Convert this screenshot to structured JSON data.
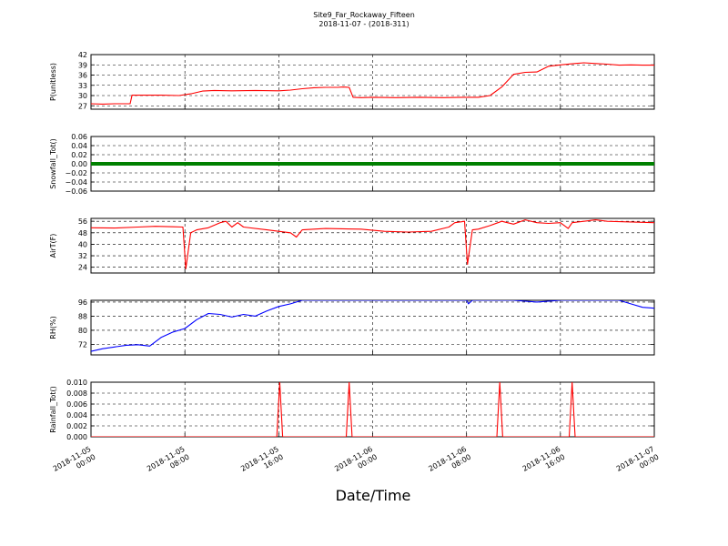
{
  "figure": {
    "title": "Site9_Far_Rockaway_Fifteen",
    "subtitle": "2018-11-07 - (2018-311)",
    "xlabel": "Date/Time"
  },
  "chart_data": {
    "type": "line",
    "grid": true,
    "x_range": [
      "2018-11-05 00:00",
      "2018-11-07 00:00"
    ],
    "x_ticks": [
      {
        "at": "2018-11-05 00:00",
        "l1": "2018-11-05",
        "l2": "00:00"
      },
      {
        "at": "2018-11-05 08:00",
        "l1": "2018-11-05",
        "l2": "08:00"
      },
      {
        "at": "2018-11-05 16:00",
        "l1": "2018-11-05",
        "l2": "16:00"
      },
      {
        "at": "2018-11-06 00:00",
        "l1": "2018-11-06",
        "l2": "00:00"
      },
      {
        "at": "2018-11-06 08:00",
        "l1": "2018-11-06",
        "l2": "08:00"
      },
      {
        "at": "2018-11-06 16:00",
        "l1": "2018-11-06",
        "l2": "16:00"
      },
      {
        "at": "2018-11-07 00:00",
        "l1": "2018-11-07",
        "l2": "00:00"
      }
    ],
    "panels": [
      {
        "ylabel": "P(unitless)",
        "ylim": [
          26,
          42
        ],
        "yticks": [
          "27",
          "30",
          "33",
          "36",
          "39",
          "42"
        ],
        "color": "#ff0000",
        "series": [
          [
            "2018-11-05 00:00",
            27.6
          ],
          [
            "2018-11-05 01:00",
            27.5
          ],
          [
            "2018-11-05 02:00",
            27.6
          ],
          [
            "2018-11-05 03:20",
            27.6
          ],
          [
            "2018-11-05 03:30",
            30.1
          ],
          [
            "2018-11-05 04:30",
            30.1
          ],
          [
            "2018-11-05 06:00",
            30.1
          ],
          [
            "2018-11-05 07:30",
            30.0
          ],
          [
            "2018-11-05 08:30",
            30.5
          ],
          [
            "2018-11-05 09:30",
            31.3
          ],
          [
            "2018-11-05 10:30",
            31.5
          ],
          [
            "2018-11-05 12:00",
            31.4
          ],
          [
            "2018-11-05 14:00",
            31.5
          ],
          [
            "2018-11-05 16:00",
            31.4
          ],
          [
            "2018-11-05 17:00",
            31.6
          ],
          [
            "2018-11-05 18:00",
            32.0
          ],
          [
            "2018-11-05 19:00",
            32.3
          ],
          [
            "2018-11-05 20:00",
            32.4
          ],
          [
            "2018-11-05 21:00",
            32.4
          ],
          [
            "2018-11-05 21:30",
            32.5
          ],
          [
            "2018-11-05 22:00",
            32.4
          ],
          [
            "2018-11-05 22:20",
            29.5
          ],
          [
            "2018-11-05 23:00",
            29.4
          ],
          [
            "2018-11-06 00:00",
            29.5
          ],
          [
            "2018-11-06 02:00",
            29.4
          ],
          [
            "2018-11-06 04:00",
            29.5
          ],
          [
            "2018-11-06 06:00",
            29.4
          ],
          [
            "2018-11-06 08:00",
            29.5
          ],
          [
            "2018-11-06 09:00",
            29.5
          ],
          [
            "2018-11-06 10:00",
            30.0
          ],
          [
            "2018-11-06 11:00",
            32.5
          ],
          [
            "2018-11-06 12:00",
            36.2
          ],
          [
            "2018-11-06 13:00",
            36.8
          ],
          [
            "2018-11-06 14:00",
            36.9
          ],
          [
            "2018-11-06 15:00",
            38.6
          ],
          [
            "2018-11-06 16:00",
            39.0
          ],
          [
            "2018-11-06 17:00",
            39.3
          ],
          [
            "2018-11-06 18:00",
            39.6
          ],
          [
            "2018-11-06 19:00",
            39.4
          ],
          [
            "2018-11-06 20:00",
            39.2
          ],
          [
            "2018-11-06 21:00",
            38.9
          ],
          [
            "2018-11-06 22:00",
            39.0
          ],
          [
            "2018-11-06 23:00",
            38.9
          ],
          [
            "2018-11-07 00:00",
            38.9
          ]
        ]
      },
      {
        "ylabel": "Snowfall_Tot()",
        "ylim": [
          -0.06,
          0.06
        ],
        "yticks": [
          "−0.06",
          "−0.04",
          "−0.02",
          "0.00",
          "0.02",
          "0.04",
          "0.06"
        ],
        "color": "#008000",
        "series": [
          [
            "2018-11-05 00:00",
            0.0
          ],
          [
            "2018-11-07 00:00",
            0.0
          ]
        ]
      },
      {
        "ylabel": "AirT(F)",
        "ylim": [
          20,
          58
        ],
        "yticks": [
          "24",
          "32",
          "40",
          "48",
          "56"
        ],
        "color": "#ff0000",
        "series": [
          [
            "2018-11-05 00:00",
            51.5
          ],
          [
            "2018-11-05 02:00",
            51.3
          ],
          [
            "2018-11-05 04:00",
            52.0
          ],
          [
            "2018-11-05 05:30",
            52.5
          ],
          [
            "2018-11-05 07:00",
            52.2
          ],
          [
            "2018-11-05 07:50",
            52.0
          ],
          [
            "2018-11-05 08:05",
            23.0
          ],
          [
            "2018-11-05 08:30",
            48.0
          ],
          [
            "2018-11-05 09:00",
            50.0
          ],
          [
            "2018-11-05 10:00",
            51.5
          ],
          [
            "2018-11-05 11:00",
            55.0
          ],
          [
            "2018-11-05 11:30",
            56.0
          ],
          [
            "2018-11-05 12:00",
            52.0
          ],
          [
            "2018-11-05 12:30",
            55.0
          ],
          [
            "2018-11-05 13:00",
            52.0
          ],
          [
            "2018-11-05 15:00",
            50.0
          ],
          [
            "2018-11-05 17:00",
            48.0
          ],
          [
            "2018-11-05 17:30",
            45.0
          ],
          [
            "2018-11-05 18:00",
            50.0
          ],
          [
            "2018-11-05 20:00",
            51.0
          ],
          [
            "2018-11-05 23:00",
            50.5
          ],
          [
            "2018-11-06 01:00",
            49.0
          ],
          [
            "2018-11-06 03:00",
            48.5
          ],
          [
            "2018-11-06 05:00",
            49.0
          ],
          [
            "2018-11-06 06:30",
            52.0
          ],
          [
            "2018-11-06 07:00",
            55.0
          ],
          [
            "2018-11-06 07:50",
            56.0
          ],
          [
            "2018-11-06 08:05",
            26.0
          ],
          [
            "2018-11-06 08:30",
            50.0
          ],
          [
            "2018-11-06 09:00",
            50.5
          ],
          [
            "2018-11-06 10:00",
            53.0
          ],
          [
            "2018-11-06 11:00",
            56.0
          ],
          [
            "2018-11-06 12:00",
            54.0
          ],
          [
            "2018-11-06 13:00",
            57.0
          ],
          [
            "2018-11-06 14:00",
            55.0
          ],
          [
            "2018-11-06 15:00",
            54.5
          ],
          [
            "2018-11-06 16:00",
            55.0
          ],
          [
            "2018-11-06 16:40",
            51.0
          ],
          [
            "2018-11-06 17:00",
            55.0
          ],
          [
            "2018-11-06 18:00",
            56.0
          ],
          [
            "2018-11-06 19:00",
            57.0
          ],
          [
            "2018-11-06 20:00",
            56.0
          ],
          [
            "2018-11-06 22:00",
            55.5
          ],
          [
            "2018-11-07 00:00",
            55.0
          ]
        ]
      },
      {
        "ylabel": "RH(%)",
        "ylim": [
          66,
          97
        ],
        "yticks": [
          "72",
          "80",
          "88",
          "96"
        ],
        "color": "#0000ff",
        "series": [
          [
            "2018-11-05 00:00",
            68.0
          ],
          [
            "2018-11-05 01:00",
            69.5
          ],
          [
            "2018-11-05 02:00",
            70.5
          ],
          [
            "2018-11-05 03:00",
            71.5
          ],
          [
            "2018-11-05 04:00",
            71.8
          ],
          [
            "2018-11-05 05:00",
            71.0
          ],
          [
            "2018-11-05 06:00",
            76.0
          ],
          [
            "2018-11-05 07:00",
            79.0
          ],
          [
            "2018-11-05 08:00",
            81.0
          ],
          [
            "2018-11-05 09:00",
            86.0
          ],
          [
            "2018-11-05 10:00",
            89.5
          ],
          [
            "2018-11-05 11:00",
            89.0
          ],
          [
            "2018-11-05 12:00",
            87.5
          ],
          [
            "2018-11-05 13:00",
            89.0
          ],
          [
            "2018-11-05 14:00",
            88.0
          ],
          [
            "2018-11-05 15:00",
            91.0
          ],
          [
            "2018-11-05 16:00",
            93.5
          ],
          [
            "2018-11-05 17:00",
            95.0
          ],
          [
            "2018-11-05 18:00",
            97.0
          ],
          [
            "2018-11-05 20:00",
            97.0
          ],
          [
            "2018-11-06 08:00",
            97.0
          ],
          [
            "2018-11-06 08:10",
            95.0
          ],
          [
            "2018-11-06 08:30",
            97.0
          ],
          [
            "2018-11-06 12:00",
            97.0
          ],
          [
            "2018-11-06 14:00",
            96.0
          ],
          [
            "2018-11-06 16:00",
            97.0
          ],
          [
            "2018-11-06 21:00",
            97.0
          ],
          [
            "2018-11-06 22:00",
            95.0
          ],
          [
            "2018-11-06 23:00",
            93.0
          ],
          [
            "2018-11-07 00:00",
            92.5
          ]
        ]
      },
      {
        "ylabel": "Rainfall_Tot()",
        "ylim": [
          0,
          0.01
        ],
        "yticks": [
          "0.000",
          "0.002",
          "0.004",
          "0.006",
          "0.008",
          "0.010"
        ],
        "color": "#ff0000",
        "series": [
          [
            "2018-11-05 00:00",
            0.0
          ],
          [
            "2018-11-05 15:50",
            0.0
          ],
          [
            "2018-11-05 16:05",
            0.01
          ],
          [
            "2018-11-05 16:20",
            0.0
          ],
          [
            "2018-11-05 21:45",
            0.0
          ],
          [
            "2018-11-05 22:00",
            0.01
          ],
          [
            "2018-11-05 22:15",
            0.0
          ],
          [
            "2018-11-06 10:35",
            0.0
          ],
          [
            "2018-11-06 10:50",
            0.01
          ],
          [
            "2018-11-06 11:05",
            0.0
          ],
          [
            "2018-11-06 16:45",
            0.0
          ],
          [
            "2018-11-06 17:00",
            0.01
          ],
          [
            "2018-11-06 17:15",
            0.0
          ],
          [
            "2018-11-07 00:00",
            0.0
          ]
        ]
      }
    ]
  }
}
